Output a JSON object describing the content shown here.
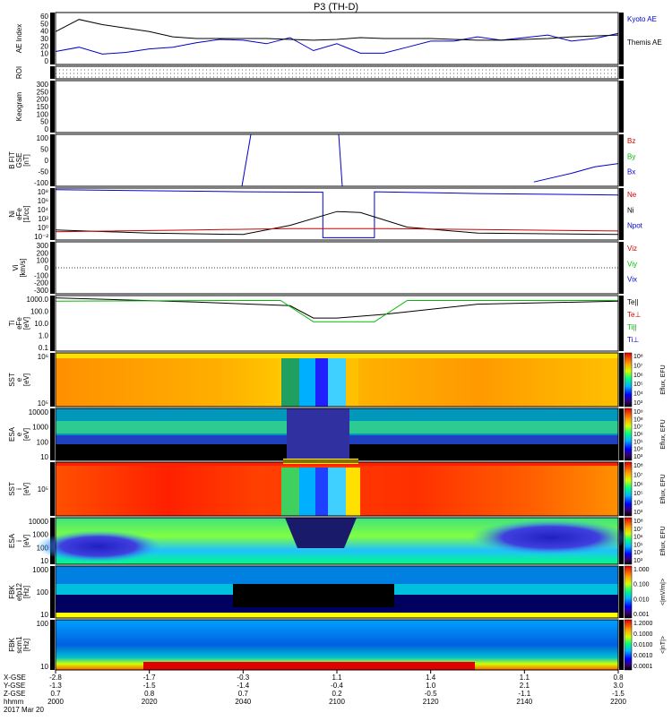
{
  "title": "P3 (TH-D)",
  "footer": {
    "row_labels": [
      "X-GSE",
      "Y-GSE",
      "Z-GSE",
      "hhmm",
      "2017 Mar 20"
    ],
    "times": [
      "2000",
      "2020",
      "2040",
      "2100",
      "2120",
      "2140",
      "2200"
    ],
    "x_gse": [
      "-2.8",
      "-1.7",
      "-0.3",
      "1.1",
      "1.4",
      "1.1",
      "0.8"
    ],
    "y_gse": [
      "-1.3",
      "-1.5",
      "-1.4",
      "-0.4",
      "1.0",
      "2.1",
      "3.0"
    ],
    "z_gse": [
      "0.7",
      "0.8",
      "0.7",
      "0.2",
      "-0.5",
      "-1.1",
      "-1.5"
    ]
  },
  "panels": [
    {
      "key": "ae",
      "ylabel": [
        "AE Index"
      ],
      "ticks": [
        "60",
        "50",
        "40",
        "30",
        "20",
        "10",
        "0"
      ],
      "legend": [
        {
          "text": "Kyoto AE",
          "color": "#0000cc"
        },
        {
          "text": "Themis AE",
          "color": "#000000"
        }
      ]
    },
    {
      "key": "roi",
      "ylabel": [
        "ROI"
      ],
      "ticks": [],
      "legend": []
    },
    {
      "key": "keogram",
      "ylabel": [
        "Keogram"
      ],
      "ticks": [
        "300",
        "250",
        "200",
        "150",
        "100",
        "50",
        "0"
      ],
      "legend": []
    },
    {
      "key": "bfield",
      "ylabel": [
        "B FIT",
        "GSE",
        "[nT]"
      ],
      "ticks": [
        "100",
        "50",
        "0",
        "-50",
        "-100"
      ],
      "legend": [
        {
          "text": "Bz",
          "color": "#cc0000"
        },
        {
          "text": "By",
          "color": "#00bb00"
        },
        {
          "text": "Bx",
          "color": "#0000cc"
        }
      ]
    },
    {
      "key": "density",
      "ylabel": [
        "Ni",
        "eFe",
        "[1/cc]"
      ],
      "ticks": [
        "10⁸",
        "10⁶",
        "10⁴",
        "10²",
        "10⁰",
        "10⁻²"
      ],
      "legend": [
        {
          "text": "Ne",
          "color": "#cc0000"
        },
        {
          "text": "Ni",
          "color": "#000000"
        },
        {
          "text": "Npot",
          "color": "#0000cc"
        }
      ]
    },
    {
      "key": "velocity",
      "ylabel": [
        "Vi",
        "[km/s]"
      ],
      "ticks": [
        "300",
        "200",
        "100",
        "0",
        "-100",
        "-200",
        "-300"
      ],
      "legend": [
        {
          "text": "Viz",
          "color": "#cc0000"
        },
        {
          "text": "Viy",
          "color": "#00bb00"
        },
        {
          "text": "Vix",
          "color": "#0000cc"
        }
      ]
    },
    {
      "key": "temperature",
      "ylabel": [
        "Ti",
        "eFe",
        "[eV]"
      ],
      "ticks": [
        "1000.0",
        "100.0",
        "10.0",
        "1.0",
        "0.1"
      ],
      "legend": [
        {
          "text": "Te||",
          "color": "#000000"
        },
        {
          "text": "Te⊥",
          "color": "#cc0000"
        },
        {
          "text": "Ti||",
          "color": "#00bb00"
        },
        {
          "text": "Ti⊥",
          "color": "#0000cc"
        }
      ]
    },
    {
      "key": "sst_e",
      "ylabel": [
        "SST",
        "e",
        "[eV]"
      ],
      "ticks": [
        "10⁶",
        "10⁵"
      ],
      "legend": []
    },
    {
      "key": "esa_e",
      "ylabel": [
        "ESA",
        "e",
        "[eV]"
      ],
      "ticks": [
        "10000",
        "1000",
        "100",
        "10"
      ],
      "legend": []
    },
    {
      "key": "sst_i",
      "ylabel": [
        "SST",
        "i",
        "[eV]"
      ],
      "ticks": [
        "10⁵"
      ],
      "legend": []
    },
    {
      "key": "esa_i",
      "ylabel": [
        "ESA",
        "i",
        "[eV]"
      ],
      "ticks": [
        "10000",
        "1000",
        "100",
        "10"
      ],
      "legend": []
    },
    {
      "key": "fbk_e",
      "ylabel": [
        "FBK",
        "efp12",
        "[Hz]"
      ],
      "ticks": [
        "1000",
        "100",
        "10"
      ],
      "legend": []
    },
    {
      "key": "fbk_b",
      "ylabel": [
        "FBK",
        "scm1",
        "[Hz]"
      ],
      "ticks": [
        "100",
        "10"
      ],
      "legend": []
    }
  ],
  "colorbars": [
    {
      "key": "sst_e",
      "labels": [
        "10⁸",
        "10⁷",
        "10⁶",
        "10⁵",
        "10⁴",
        "10³"
      ],
      "title": "Eflux, EFU"
    },
    {
      "key": "esa_e",
      "labels": [
        "10⁹",
        "10⁸",
        "10⁷",
        "10⁶",
        "10⁵",
        "10⁴",
        "10³"
      ],
      "title": "Eflux, EFU"
    },
    {
      "key": "sst_i",
      "labels": [
        "10⁸",
        "10⁷",
        "10⁶",
        "10⁵",
        "10⁴",
        "10³"
      ],
      "title": "Eflux, EFU"
    },
    {
      "key": "esa_i",
      "labels": [
        "10⁸",
        "10⁷",
        "10⁶",
        "10⁵",
        "10⁴",
        "10³"
      ],
      "title": "Eflux, EFU"
    },
    {
      "key": "fbk_e",
      "labels": [
        "1.000",
        "0.100",
        "0.010",
        "0.001"
      ],
      "title": "<|mV/m|>"
    },
    {
      "key": "fbk_b",
      "labels": [
        "1.2000",
        "0.1000",
        "0.0100",
        "0.0010",
        "0.0001"
      ],
      "title": "<|nT|>"
    }
  ],
  "chart_data": {
    "type": "line",
    "title": "P3 (TH-D)",
    "x_unit": "hhmm",
    "date": "2017 Mar 20",
    "x_range": [
      "2000",
      "2200"
    ],
    "x_ticks": [
      "2000",
      "2020",
      "2040",
      "2100",
      "2120",
      "2140",
      "2200"
    ],
    "series": [
      {
        "name": "Kyoto AE",
        "panel": "ae",
        "x": [
          "2000",
          "2005",
          "2010",
          "2015",
          "2020",
          "2025",
          "2030",
          "2035",
          "2040",
          "2045",
          "2050",
          "2055",
          "2100",
          "2105",
          "2110",
          "2115",
          "2120",
          "2125",
          "2130",
          "2135",
          "2140",
          "2145",
          "2150",
          "2155",
          "2200"
        ],
        "y": [
          15,
          20,
          12,
          14,
          18,
          20,
          25,
          29,
          28,
          24,
          31,
          16,
          24,
          13,
          13,
          20,
          27,
          27,
          32,
          28,
          31,
          34,
          27,
          30,
          36
        ]
      },
      {
        "name": "Themis AE",
        "panel": "ae",
        "x": [
          "2000",
          "2005",
          "2010",
          "2015",
          "2020",
          "2025",
          "2030",
          "2035",
          "2040",
          "2045",
          "2050",
          "2055",
          "2100",
          "2105",
          "2110",
          "2115",
          "2120",
          "2125",
          "2130",
          "2135",
          "2140",
          "2145",
          "2150",
          "2155",
          "2200"
        ],
        "y": [
          38,
          52,
          46,
          42,
          38,
          32,
          30,
          30,
          30,
          30,
          29,
          28,
          29,
          31,
          30,
          30,
          30,
          29,
          28,
          28,
          29,
          30,
          32,
          33,
          34
        ]
      },
      {
        "name": "Bx",
        "panel": "bfield",
        "x": [
          "2142",
          "2150",
          "2155",
          "2200"
        ],
        "y": [
          -100,
          -60,
          -30,
          -15
        ]
      },
      {
        "name": "Npot",
        "panel": "density",
        "x": [
          "2000",
          "2040",
          "2057",
          "2057",
          "2108",
          "2108",
          "2130",
          "2200"
        ],
        "y": [
          300000000,
          100000000,
          80000000,
          0.01,
          0.01,
          100000000,
          40000000,
          20000000
        ]
      },
      {
        "name": "Ni",
        "panel": "density",
        "x": [
          "2000",
          "2020",
          "2040",
          "2050",
          "2100",
          "2105",
          "2115",
          "2130",
          "2200"
        ],
        "y": [
          0.5,
          0.1,
          0.05,
          5,
          5000,
          3000,
          2,
          0.1,
          0.05
        ]
      },
      {
        "name": "Ne",
        "panel": "density",
        "x": [
          "2000",
          "2030",
          "2050",
          "2100",
          "2110",
          "2130",
          "2200"
        ],
        "y": [
          0.2,
          0.5,
          1,
          1,
          1,
          0.6,
          0.3
        ]
      },
      {
        "name": "Te||",
        "panel": "temperature",
        "x": [
          "2000",
          "2030",
          "2050",
          "2055",
          "2100",
          "2110",
          "2130",
          "2200"
        ],
        "y": [
          1300,
          600,
          300,
          30,
          30,
          60,
          400,
          700
        ]
      },
      {
        "name": "Ti||",
        "panel": "temperature",
        "x": [
          "2000",
          "2040",
          "2048",
          "2055",
          "2100",
          "2108",
          "2115",
          "2130",
          "2200"
        ],
        "y": [
          700,
          800,
          800,
          15,
          15,
          15,
          800,
          800,
          800
        ]
      }
    ]
  }
}
